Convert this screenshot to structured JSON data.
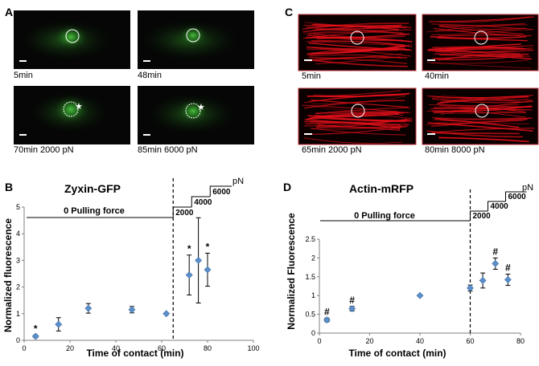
{
  "panels": {
    "A": {
      "letter": "A",
      "cells": [
        {
          "caption": "5min",
          "marker": "none"
        },
        {
          "caption": "48min",
          "marker": "none"
        },
        {
          "caption": "70min 2000 pN",
          "marker": "star"
        },
        {
          "caption": "85min 6000 pN",
          "marker": "star"
        }
      ],
      "colors": {
        "background": "#050605",
        "cell": "#1f7a1a",
        "glow": "#55d24a"
      }
    },
    "C": {
      "letter": "C",
      "cells": [
        {
          "caption": "5min"
        },
        {
          "caption": "40min"
        },
        {
          "caption": "65min 2000 pN"
        },
        {
          "caption": "80min 8000 pN"
        }
      ],
      "colors": {
        "background": "#0a0000",
        "fiber": "#e8101a",
        "border": "#c0303a"
      }
    },
    "B": {
      "letter": "B",
      "pulling_label": "0 Pulling force",
      "unit": "pN"
    },
    "D": {
      "letter": "D",
      "pulling_label": "0 Pulling force",
      "unit": "pN"
    }
  },
  "chart_data": [
    {
      "panel": "B",
      "type": "scatter",
      "title": "Zyxin-GFP",
      "xlabel": "Time of contact (min)",
      "ylabel": "Normalized  fluorescence",
      "xlim": [
        0,
        100
      ],
      "ylim": [
        0,
        5
      ],
      "xticks": [
        0,
        20,
        40,
        60,
        80,
        100
      ],
      "yticks": [
        0,
        1,
        2,
        3,
        4,
        5
      ],
      "grid": false,
      "marker_color": "#5b8fc9",
      "points": [
        {
          "x": 5,
          "y": 0.15,
          "err": 0.05,
          "label": "*"
        },
        {
          "x": 15,
          "y": 0.6,
          "err": 0.25,
          "label": ""
        },
        {
          "x": 28,
          "y": 1.2,
          "err": 0.18,
          "label": ""
        },
        {
          "x": 47,
          "y": 1.15,
          "err": 0.12,
          "label": ""
        },
        {
          "x": 62,
          "y": 1.0,
          "err": 0.03,
          "label": ""
        },
        {
          "x": 72,
          "y": 2.45,
          "err": 0.75,
          "label": "*"
        },
        {
          "x": 76,
          "y": 3.0,
          "err": 1.6,
          "label": ""
        },
        {
          "x": 80,
          "y": 2.65,
          "err": 0.62,
          "label": "*"
        }
      ],
      "divider_x": 65,
      "force_steps": [
        "2000",
        "4000",
        "6000"
      ]
    },
    {
      "panel": "D",
      "type": "scatter",
      "title": "Actin-mRFP",
      "xlabel": "Time of contact (min)",
      "ylabel": "Normalized Fluorescence",
      "xlim": [
        0,
        80
      ],
      "ylim": [
        0,
        2.5
      ],
      "xticks": [
        0,
        20,
        40,
        60,
        80
      ],
      "yticks": [
        0,
        0.5,
        1,
        1.5,
        2,
        2.5
      ],
      "ytick_labels": [
        "0",
        "0.5",
        "1",
        "1.5",
        "2",
        "2.5"
      ],
      "grid": false,
      "marker_color": "#5b8fc9",
      "points": [
        {
          "x": 3,
          "y": 0.35,
          "err": 0.05,
          "label": "#"
        },
        {
          "x": 13,
          "y": 0.65,
          "err": 0.06,
          "label": "#"
        },
        {
          "x": 40,
          "y": 1.0,
          "err": 0.02,
          "label": ""
        },
        {
          "x": 60,
          "y": 1.2,
          "err": 0.08,
          "label": ""
        },
        {
          "x": 65,
          "y": 1.4,
          "err": 0.2,
          "label": ""
        },
        {
          "x": 70,
          "y": 1.85,
          "err": 0.15,
          "label": "#"
        },
        {
          "x": 75,
          "y": 1.42,
          "err": 0.15,
          "label": "#"
        }
      ],
      "divider_x": 60,
      "force_steps": [
        "2000",
        "4000",
        "6000"
      ]
    }
  ]
}
